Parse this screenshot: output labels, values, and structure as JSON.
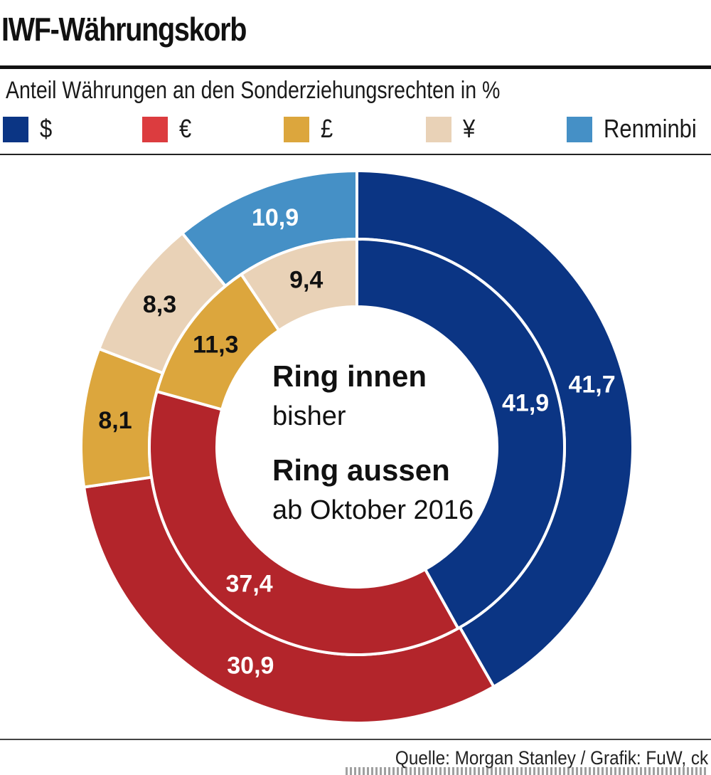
{
  "title": "IWF-Währungskorb",
  "subtitle": "Anteil Währungen an den Sonderziehungsrechten in %",
  "legend": [
    {
      "label": "$",
      "color": "#0b3584"
    },
    {
      "label": "€",
      "color": "#dc3c3f"
    },
    {
      "label": "£",
      "color": "#dca63d"
    },
    {
      "label": "¥",
      "color": "#e9d2b7"
    },
    {
      "label": "Renminbi",
      "color": "#4590c6"
    }
  ],
  "center": {
    "inner_title": "Ring innen",
    "inner_sub": "bisher",
    "outer_title": "Ring aussen",
    "outer_sub": "ab Oktober 2016"
  },
  "source": "Quelle: Morgan Stanley / Grafik: FuW, ck",
  "chart_data": {
    "type": "pie",
    "donut": true,
    "categories": [
      "$",
      "€",
      "£",
      "¥",
      "Renminbi"
    ],
    "series": [
      {
        "name": "Ring innen",
        "values": [
          41.9,
          37.4,
          11.3,
          9.4,
          null
        ],
        "labels": [
          "41,9",
          "37,4",
          "11,3",
          "9,4",
          null
        ]
      },
      {
        "name": "Ring aussen",
        "values": [
          41.7,
          30.9,
          8.1,
          8.3,
          10.9
        ],
        "labels": [
          "41,7",
          "30,9",
          "8,1",
          "8,3",
          "10,9"
        ]
      }
    ],
    "colors": {
      "fill": [
        "#0b3584",
        "#b3252b",
        "#dca63d",
        "#e9d2b7",
        "#4590c6"
      ],
      "label": [
        "#ffffff",
        "#ffffff",
        "#111111",
        "#111111",
        "#ffffff"
      ]
    }
  }
}
